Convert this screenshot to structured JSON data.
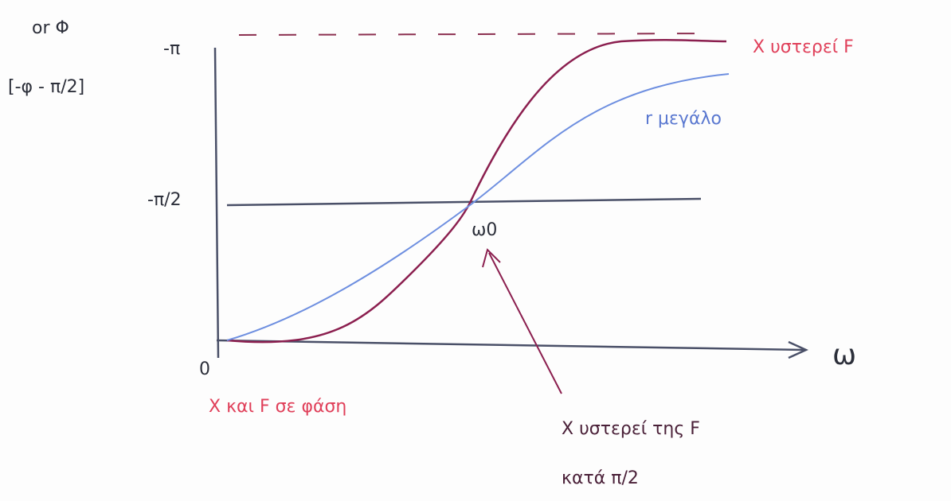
{
  "diagram": {
    "y_axis_label": "or Φ",
    "y_axis_expression": "[-φ - π/2]",
    "y_ticks": [
      "-π",
      "-π/2"
    ],
    "origin_label": "0",
    "x_axis_label": "ω",
    "crossing_label": "ω0",
    "annotations": {
      "top_right": "X υστερεί F",
      "blue_curve": "r μεγάλο",
      "bottom_left": "X και F σε φάση",
      "bottom_right_line1": "X υστερεί της F",
      "bottom_right_line2": "κατά π/2"
    }
  }
}
